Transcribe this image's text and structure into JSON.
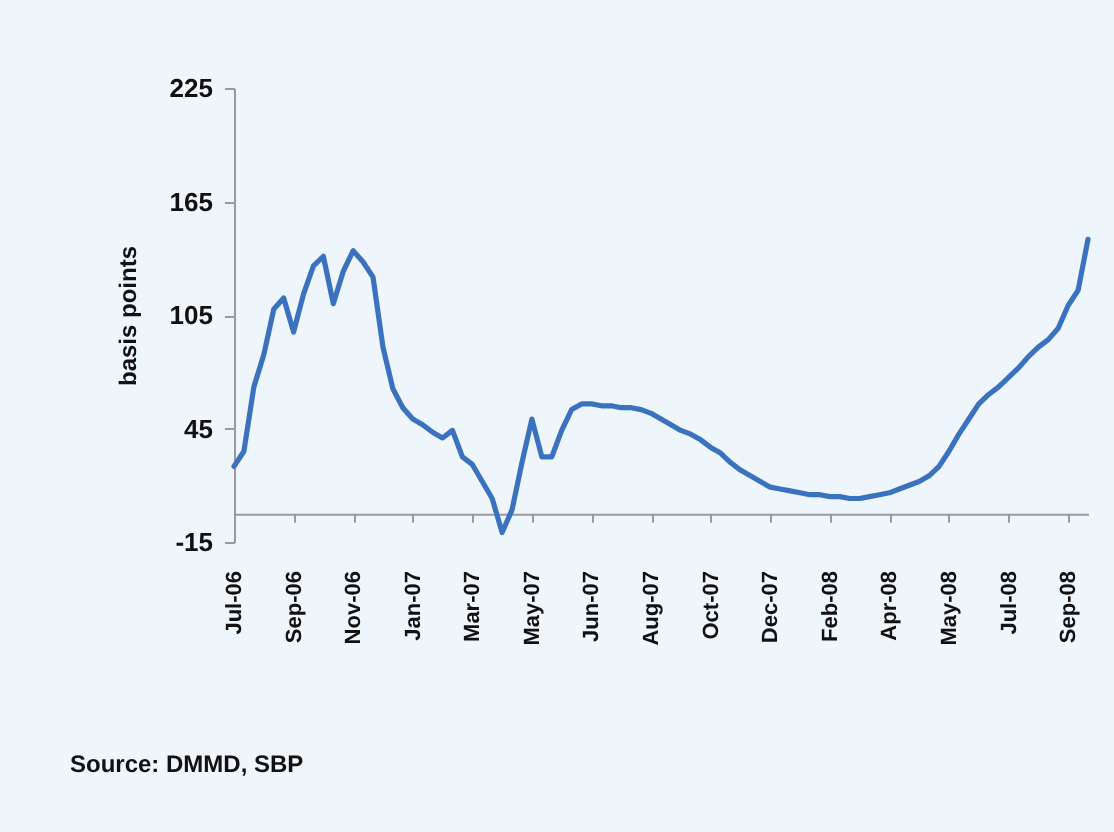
{
  "chart_data": {
    "type": "line",
    "ylabel": "basis points",
    "annotations": [
      "Source: DMMD, SBP"
    ],
    "categories": [
      "Jul-06",
      null,
      null,
      null,
      null,
      null,
      "Sep-06",
      null,
      null,
      null,
      null,
      null,
      "Nov-06",
      null,
      null,
      null,
      null,
      null,
      "Jan-07",
      null,
      null,
      null,
      null,
      null,
      "Mar-07",
      null,
      null,
      null,
      null,
      null,
      "May-07",
      null,
      null,
      null,
      null,
      null,
      "Jun-07",
      null,
      null,
      null,
      null,
      null,
      "Aug-07",
      null,
      null,
      null,
      null,
      null,
      "Oct-07",
      null,
      null,
      null,
      null,
      null,
      "Dec-07",
      null,
      null,
      null,
      null,
      null,
      "Feb-08",
      null,
      null,
      null,
      null,
      null,
      "Apr-08",
      null,
      null,
      null,
      null,
      null,
      "May-08",
      null,
      null,
      null,
      null,
      null,
      "Jul-08",
      null,
      null,
      null,
      null,
      null,
      "Sep-08",
      null,
      null
    ],
    "series": [
      {
        "color": "#3b72c0",
        "values": [
          25,
          33,
          67,
          84,
          108,
          114,
          96,
          116,
          131,
          136,
          111,
          128,
          139,
          133,
          125,
          88,
          66,
          56,
          50,
          47,
          43,
          40,
          44,
          30,
          26,
          17,
          8,
          -10,
          2,
          27,
          50,
          30,
          30,
          44,
          55,
          58,
          58,
          57,
          57,
          56,
          56,
          55,
          53,
          50,
          47,
          44,
          42,
          39,
          35,
          32,
          27,
          23,
          20,
          17,
          14,
          13,
          12,
          11,
          10,
          10,
          9,
          9,
          8,
          8,
          9,
          10,
          11,
          13,
          15,
          17,
          20,
          25,
          33,
          42,
          50,
          58,
          63,
          67,
          72,
          77,
          83,
          88,
          92,
          98,
          110,
          118,
          145
        ]
      }
    ],
    "ylim": [
      -15,
      225
    ],
    "yticks": [
      -15,
      45,
      105,
      165,
      225
    ]
  }
}
